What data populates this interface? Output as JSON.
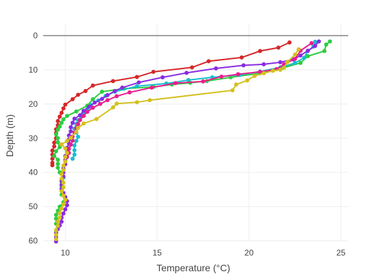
{
  "chart_data": {
    "type": "line",
    "title": "",
    "xlabel": "Temperature (°C)",
    "ylabel": "Depth (m)",
    "xlim": [
      8.8,
      25.4
    ],
    "ylim": [
      0,
      62.5
    ],
    "y_reversed": true,
    "x_ticks": [
      10,
      15,
      20,
      25
    ],
    "y_ticks": [
      0,
      10,
      20,
      30,
      40,
      50,
      60
    ],
    "grid": true,
    "legend": "none",
    "zero_line_color": "#444444",
    "grid_color": "#eeeeee",
    "series": [
      {
        "color": "#d62728",
        "points": [
          [
            22.2,
            2.0
          ],
          [
            21.6,
            3.5
          ],
          [
            20.6,
            4.5
          ],
          [
            19.6,
            6.4
          ],
          [
            17.8,
            7.5
          ],
          [
            16.9,
            9.3
          ],
          [
            14.8,
            10.6
          ],
          [
            13.9,
            12.1
          ],
          [
            12.6,
            13.3
          ],
          [
            11.5,
            14.6
          ],
          [
            11.1,
            16.2
          ],
          [
            10.7,
            17.3
          ],
          [
            10.4,
            18.6
          ],
          [
            10.0,
            20.2
          ],
          [
            9.9,
            21.3
          ],
          [
            9.8,
            22.6
          ],
          [
            9.7,
            23.7
          ],
          [
            9.6,
            25.0
          ],
          [
            9.6,
            26.2
          ],
          [
            9.5,
            27.4
          ],
          [
            9.5,
            28.5
          ],
          [
            9.5,
            30.0
          ],
          [
            9.4,
            31.3
          ],
          [
            9.4,
            32.4
          ],
          [
            9.3,
            33.6
          ],
          [
            9.3,
            34.8
          ],
          [
            9.3,
            36.0
          ],
          [
            9.3,
            37.2
          ],
          [
            9.3,
            37.9
          ]
        ]
      },
      {
        "color": "#2ecc40",
        "points": [
          [
            24.4,
            1.7
          ],
          [
            24.2,
            2.6
          ],
          [
            24.1,
            4.5
          ],
          [
            23.2,
            6.0
          ],
          [
            22.8,
            8.0
          ],
          [
            21.8,
            9.5
          ],
          [
            20.6,
            11.0
          ],
          [
            19.0,
            12.2
          ],
          [
            17.7,
            13.3
          ],
          [
            16.8,
            13.8
          ],
          [
            15.8,
            14.3
          ],
          [
            14.8,
            15.0
          ],
          [
            13.2,
            15.5
          ],
          [
            12.0,
            16.4
          ],
          [
            11.5,
            18.6
          ],
          [
            11.2,
            20.5
          ],
          [
            10.6,
            22.2
          ],
          [
            10.1,
            23.5
          ],
          [
            9.9,
            24.5
          ],
          [
            9.8,
            25.5
          ],
          [
            9.7,
            26.6
          ],
          [
            9.6,
            27.5
          ],
          [
            9.5,
            28.9
          ],
          [
            9.6,
            30.0
          ],
          [
            9.6,
            31.2
          ],
          [
            9.7,
            32.6
          ],
          [
            9.5,
            33.8
          ],
          [
            9.4,
            35.2
          ],
          [
            9.6,
            36.3
          ],
          [
            9.6,
            37.5
          ],
          [
            9.6,
            38.6
          ],
          [
            9.7,
            40.0
          ],
          [
            9.9,
            41.5
          ],
          [
            9.8,
            42.8
          ],
          [
            9.8,
            44.0
          ],
          [
            9.8,
            45.2
          ],
          [
            9.8,
            46.5
          ],
          [
            10.0,
            47.6
          ],
          [
            9.9,
            48.7
          ],
          [
            9.7,
            50.0
          ],
          [
            9.6,
            51.2
          ],
          [
            9.5,
            52.4
          ],
          [
            9.5,
            53.5
          ],
          [
            9.5,
            55.0
          ],
          [
            9.6,
            56.2
          ],
          [
            9.5,
            57.5
          ]
        ]
      },
      {
        "color": "#17becf",
        "points": [
          [
            23.6,
            1.8
          ],
          [
            23.5,
            3.2
          ],
          [
            23.2,
            4.5
          ],
          [
            23.0,
            6.5
          ],
          [
            22.5,
            8.0
          ],
          [
            21.7,
            9.3
          ],
          [
            20.6,
            10.5
          ],
          [
            19.5,
            11.5
          ],
          [
            18.0,
            12.2
          ],
          [
            16.7,
            13.0
          ],
          [
            15.5,
            14.0
          ],
          [
            13.9,
            14.8
          ],
          [
            12.7,
            16.4
          ],
          [
            12.2,
            17.6
          ],
          [
            11.8,
            19.0
          ],
          [
            11.4,
            20.3
          ],
          [
            11.2,
            21.5
          ],
          [
            11.0,
            22.4
          ],
          [
            10.9,
            23.5
          ],
          [
            10.7,
            24.7
          ],
          [
            10.6,
            25.8
          ],
          [
            10.5,
            27.2
          ],
          [
            10.6,
            28.3
          ],
          [
            10.7,
            29.6
          ],
          [
            10.6,
            30.8
          ],
          [
            10.5,
            32.1
          ],
          [
            10.5,
            33.5
          ],
          [
            10.5,
            34.8
          ],
          [
            10.4,
            36.0
          ]
        ]
      },
      {
        "color": "#8a2be2",
        "points": [
          [
            23.8,
            1.7
          ],
          [
            23.6,
            3.0
          ],
          [
            23.2,
            4.4
          ],
          [
            22.8,
            5.8
          ],
          [
            22.4,
            7.0
          ],
          [
            21.7,
            7.8
          ],
          [
            20.8,
            8.4
          ],
          [
            19.7,
            8.7
          ],
          [
            18.2,
            9.6
          ],
          [
            16.6,
            10.9
          ],
          [
            15.3,
            12.2
          ],
          [
            14.0,
            13.7
          ],
          [
            13.1,
            15.2
          ],
          [
            12.7,
            16.2
          ],
          [
            12.3,
            17.4
          ],
          [
            12.0,
            18.5
          ],
          [
            11.6,
            19.6
          ],
          [
            11.3,
            20.8
          ],
          [
            11.0,
            22.0
          ],
          [
            10.8,
            23.3
          ],
          [
            10.5,
            24.3
          ],
          [
            10.4,
            25.5
          ],
          [
            10.3,
            26.8
          ],
          [
            10.3,
            28.0
          ],
          [
            10.2,
            29.2
          ],
          [
            10.2,
            30.4
          ],
          [
            10.2,
            31.5
          ],
          [
            10.1,
            32.8
          ],
          [
            10.1,
            34.0
          ],
          [
            10.0,
            35.2
          ],
          [
            10.0,
            36.4
          ],
          [
            10.0,
            37.6
          ],
          [
            9.9,
            38.8
          ],
          [
            9.9,
            40.0
          ],
          [
            9.9,
            41.2
          ],
          [
            9.8,
            42.4
          ],
          [
            9.8,
            43.6
          ],
          [
            9.8,
            44.8
          ],
          [
            9.9,
            46.0
          ],
          [
            10.0,
            47.2
          ],
          [
            10.1,
            48.4
          ],
          [
            10.1,
            49.6
          ],
          [
            10.0,
            50.8
          ],
          [
            9.9,
            52.0
          ],
          [
            9.8,
            53.2
          ],
          [
            9.8,
            54.4
          ],
          [
            9.7,
            55.5
          ],
          [
            9.6,
            56.6
          ],
          [
            9.5,
            57.8
          ],
          [
            9.5,
            59.0
          ],
          [
            9.5,
            60.2
          ]
        ]
      },
      {
        "color": "#e91e8c",
        "points": [
          [
            23.4,
            2.2
          ],
          [
            22.8,
            4.4
          ],
          [
            22.5,
            6.8
          ],
          [
            21.9,
            8.4
          ],
          [
            21.5,
            9.8
          ],
          [
            20.6,
            10.6
          ],
          [
            19.4,
            11.3
          ],
          [
            18.5,
            12.0
          ],
          [
            17.5,
            13.4
          ],
          [
            16.0,
            13.9
          ],
          [
            14.7,
            15.2
          ],
          [
            13.5,
            16.6
          ],
          [
            12.8,
            17.7
          ],
          [
            12.3,
            18.9
          ],
          [
            11.9,
            20.0
          ],
          [
            11.5,
            21.1
          ],
          [
            11.2,
            22.3
          ],
          [
            11.0,
            23.5
          ],
          [
            10.8,
            24.7
          ],
          [
            10.7,
            25.9
          ],
          [
            10.6,
            27.1
          ],
          [
            10.5,
            28.3
          ],
          [
            10.4,
            29.5
          ],
          [
            10.4,
            30.7
          ],
          [
            10.3,
            31.9
          ],
          [
            10.2,
            33.1
          ],
          [
            10.2,
            34.3
          ],
          [
            10.1,
            35.5
          ]
        ]
      },
      {
        "color": "#d4c020",
        "points": [
          [
            22.7,
            4.0
          ],
          [
            22.5,
            5.5
          ],
          [
            22.1,
            7.7
          ],
          [
            21.9,
            9.4
          ],
          [
            21.7,
            10.0
          ],
          [
            21.3,
            10.3
          ],
          [
            20.8,
            11.0
          ],
          [
            20.3,
            11.8
          ],
          [
            19.9,
            13.1
          ],
          [
            19.3,
            14.3
          ],
          [
            19.1,
            16.0
          ],
          [
            14.6,
            18.9
          ],
          [
            13.9,
            19.5
          ],
          [
            12.8,
            19.9
          ],
          [
            12.6,
            21.0
          ],
          [
            11.7,
            24.4
          ],
          [
            11.0,
            25.7
          ],
          [
            10.7,
            27.0
          ],
          [
            10.6,
            28.1
          ],
          [
            10.3,
            29.9
          ],
          [
            10.1,
            30.8
          ],
          [
            9.8,
            31.8
          ],
          [
            10.0,
            33.0
          ],
          [
            10.1,
            34.3
          ],
          [
            10.0,
            35.5
          ],
          [
            10.0,
            36.8
          ],
          [
            9.9,
            38.0
          ],
          [
            9.9,
            39.3
          ],
          [
            9.8,
            40.5
          ],
          [
            9.8,
            41.8
          ],
          [
            9.9,
            43.0
          ],
          [
            9.9,
            44.3
          ],
          [
            9.8,
            45.5
          ],
          [
            9.9,
            46.8
          ],
          [
            10.0,
            48.0
          ],
          [
            9.9,
            49.3
          ],
          [
            9.8,
            50.6
          ],
          [
            9.7,
            51.9
          ],
          [
            9.7,
            53.2
          ],
          [
            9.6,
            54.4
          ],
          [
            9.6,
            55.6
          ],
          [
            9.5,
            56.9
          ],
          [
            9.5,
            58.2
          ],
          [
            9.5,
            59.5
          ]
        ]
      }
    ]
  }
}
